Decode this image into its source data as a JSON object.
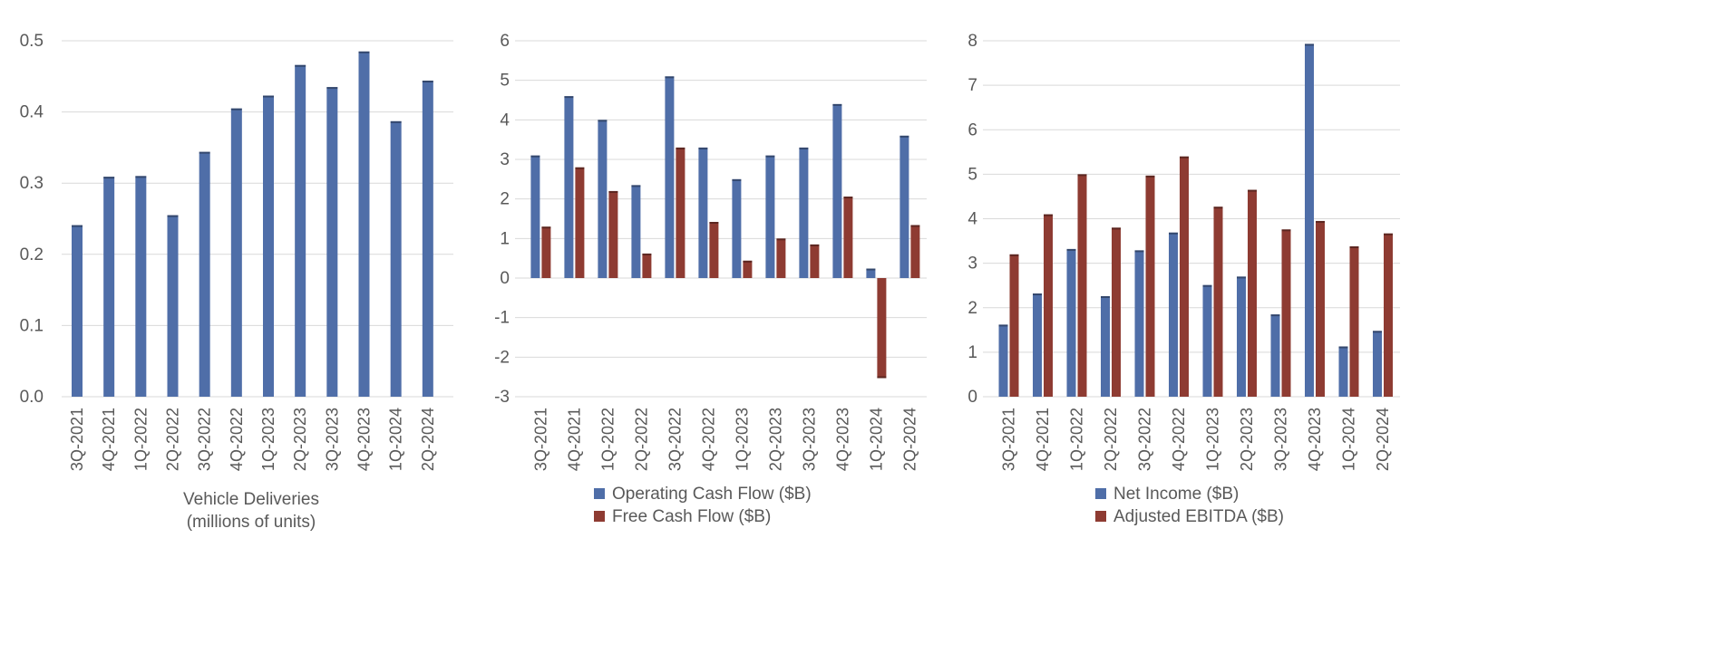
{
  "colors": {
    "blue": "#4f6ea8",
    "red": "#8e3b32",
    "grid": "#d9d9d9",
    "text": "#595959"
  },
  "chart_data": [
    {
      "type": "bar",
      "categories": [
        "3Q-2021",
        "4Q-2021",
        "1Q-2022",
        "2Q-2022",
        "3Q-2022",
        "4Q-2022",
        "1Q-2023",
        "2Q-2023",
        "3Q-2023",
        "4Q-2023",
        "1Q-2024",
        "2Q-2024"
      ],
      "series": [
        {
          "name": "",
          "color": "#4f6ea8",
          "values": [
            0.241,
            0.309,
            0.31,
            0.255,
            0.344,
            0.405,
            0.423,
            0.466,
            0.435,
            0.485,
            0.387,
            0.444
          ]
        }
      ],
      "ylim": [
        0,
        0.5
      ],
      "yticks": [
        "0.0",
        "0.1",
        "0.2",
        "0.3",
        "0.4",
        "0.5"
      ],
      "xlabel": "Vehicle Deliveries",
      "xlabel2": "(millions of units)",
      "grid": true,
      "legend": "none"
    },
    {
      "type": "bar",
      "categories": [
        "3Q-2021",
        "4Q-2021",
        "1Q-2022",
        "2Q-2022",
        "3Q-2022",
        "4Q-2022",
        "1Q-2023",
        "2Q-2023",
        "3Q-2023",
        "4Q-2023",
        "1Q-2024",
        "2Q-2024"
      ],
      "series": [
        {
          "name": "Operating Cash Flow ($B)",
          "color": "#4f6ea8",
          "values": [
            3.1,
            4.6,
            4.0,
            2.35,
            5.1,
            3.3,
            2.5,
            3.1,
            3.3,
            4.4,
            0.24,
            3.6
          ]
        },
        {
          "name": "Free Cash Flow ($B)",
          "color": "#8e3b32",
          "values": [
            1.3,
            2.8,
            2.2,
            0.62,
            3.3,
            1.42,
            0.44,
            1.0,
            0.85,
            2.06,
            -2.53,
            1.34
          ]
        }
      ],
      "ylim": [
        -3,
        6
      ],
      "yticks": [
        "-3",
        "-2",
        "-1",
        "0",
        "1",
        "2",
        "3",
        "4",
        "5",
        "6"
      ],
      "grid": true,
      "legend": "bottom"
    },
    {
      "type": "bar",
      "categories": [
        "3Q-2021",
        "4Q-2021",
        "1Q-2022",
        "2Q-2022",
        "3Q-2022",
        "4Q-2022",
        "1Q-2023",
        "2Q-2023",
        "3Q-2023",
        "4Q-2023",
        "1Q-2024",
        "2Q-2024"
      ],
      "series": [
        {
          "name": "Net Income ($B)",
          "color": "#4f6ea8",
          "values": [
            1.62,
            2.32,
            3.32,
            2.26,
            3.29,
            3.69,
            2.51,
            2.7,
            1.85,
            7.93,
            1.13,
            1.48
          ]
        },
        {
          "name": "Adjusted EBITDA ($B)",
          "color": "#8e3b32",
          "values": [
            3.2,
            4.1,
            5.0,
            3.8,
            4.97,
            5.4,
            4.27,
            4.65,
            3.76,
            3.95,
            3.38,
            3.67
          ]
        }
      ],
      "ylim": [
        0,
        8
      ],
      "yticks": [
        "0",
        "1",
        "2",
        "3",
        "4",
        "5",
        "6",
        "7",
        "8"
      ],
      "grid": true,
      "legend": "bottom"
    }
  ]
}
